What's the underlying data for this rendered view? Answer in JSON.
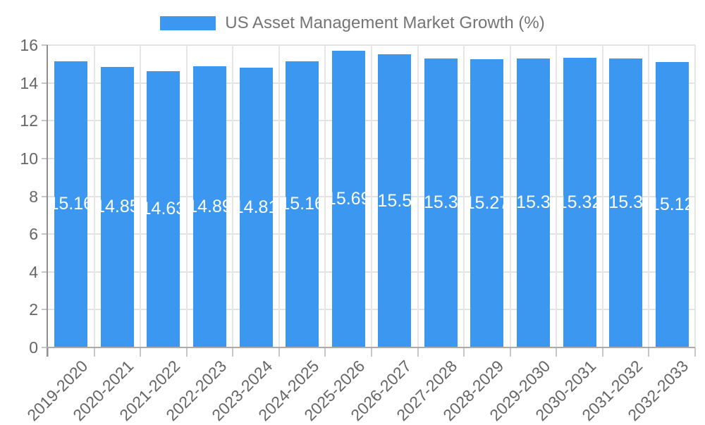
{
  "legend": {
    "label": "US Asset Management Market Growth (%)",
    "swatch_color": "#3b97f0"
  },
  "y_axis": {
    "tick_labels": [
      "16",
      "14",
      "12",
      "10",
      "8",
      "6",
      "4",
      "2",
      "0"
    ],
    "min": 0,
    "max": 16
  },
  "chart_data": {
    "type": "bar",
    "title": "US Asset Management Market Growth (%)",
    "categories": [
      "2019-2020",
      "2020-2021",
      "2021-2022",
      "2022-2023",
      "2023-2024",
      "2024-2025",
      "2025-2026",
      "2026-2027",
      "2027-2028",
      "2028-2029",
      "2029-2030",
      "2030-2031",
      "2031-2032",
      "2032-2033"
    ],
    "values": [
      15.16,
      14.85,
      14.63,
      14.89,
      14.81,
      15.16,
      15.69,
      15.5,
      15.3,
      15.27,
      15.3,
      15.32,
      15.3,
      15.12
    ],
    "bar_labels": [
      "15.16",
      "14.85",
      "14.63",
      "14.89",
      "14.81",
      "15.16",
      "15.69",
      "15.5",
      "15.3",
      "15.27",
      "15.3",
      "15.32",
      "15.3",
      "15.12"
    ],
    "xlabel": "",
    "ylabel": "",
    "ylim": [
      0,
      16
    ],
    "grid": true,
    "legend_position": "top",
    "bar_color": "#3b97f0",
    "bar_label_color": "#ffffff",
    "axis_text_color": "#666666",
    "legend_text_color": "#757575",
    "gridline_color": "#e3e3e3"
  }
}
